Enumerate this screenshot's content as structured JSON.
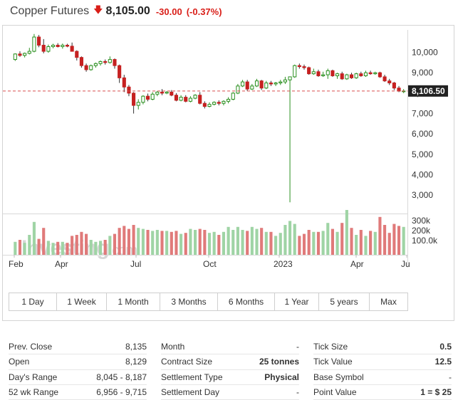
{
  "header": {
    "name": "Copper Futures",
    "price": "8,105.00",
    "change": "-30.00",
    "change_pct": "(-0.37%)"
  },
  "colors": {
    "up": "#2a8f1f",
    "up_fill": "#ffffff",
    "down": "#c62121",
    "vol_up": "#9fd4a5",
    "vol_down": "#e07a7a",
    "last_line": "#d94f4f"
  },
  "chart_data": {
    "type": "candlestick",
    "price_axis": {
      "ticks": [
        "10,000",
        "9,000",
        "8,000",
        "7,000",
        "6,000",
        "5,000",
        "4,000",
        "3,000"
      ],
      "tick_values": [
        10000,
        9000,
        8000,
        7000,
        6000,
        5000,
        4000,
        3000
      ],
      "range": [
        2100,
        11100
      ]
    },
    "last_price_label": "8,106.50",
    "last_price": 8106.5,
    "volume_axis": {
      "ticks": [
        "300k",
        "200k",
        "100.0k"
      ],
      "tick_values": [
        300000,
        200000,
        100000
      ],
      "max": 400000
    },
    "x_labels": [
      "Feb",
      "Apr",
      "Jul",
      "Oct",
      "2023",
      "Apr",
      "Ju"
    ],
    "watermark": "Investing.com",
    "candles": [
      {
        "o": 9650,
        "h": 9950,
        "l": 9580,
        "c": 9920,
        "v": 130000
      },
      {
        "o": 9920,
        "h": 10050,
        "l": 9780,
        "c": 9850,
        "v": 150000
      },
      {
        "o": 9850,
        "h": 9990,
        "l": 9750,
        "c": 9950,
        "v": 120000
      },
      {
        "o": 9950,
        "h": 10220,
        "l": 9900,
        "c": 10050,
        "v": 200000
      },
      {
        "o": 10050,
        "h": 10900,
        "l": 10000,
        "c": 10750,
        "v": 330000
      },
      {
        "o": 10750,
        "h": 10850,
        "l": 10250,
        "c": 10350,
        "v": 160000
      },
      {
        "o": 10350,
        "h": 10650,
        "l": 9950,
        "c": 10050,
        "v": 270000
      },
      {
        "o": 10050,
        "h": 10380,
        "l": 9980,
        "c": 10280,
        "v": 140000
      },
      {
        "o": 10280,
        "h": 10420,
        "l": 10200,
        "c": 10350,
        "v": 120000
      },
      {
        "o": 10350,
        "h": 10450,
        "l": 10240,
        "c": 10280,
        "v": 130000
      },
      {
        "o": 10280,
        "h": 10430,
        "l": 10180,
        "c": 10350,
        "v": 130000
      },
      {
        "o": 10350,
        "h": 10420,
        "l": 10250,
        "c": 10300,
        "v": 120000
      },
      {
        "o": 10300,
        "h": 10480,
        "l": 10100,
        "c": 10050,
        "v": 190000
      },
      {
        "o": 10050,
        "h": 10100,
        "l": 9600,
        "c": 9750,
        "v": 200000
      },
      {
        "o": 9750,
        "h": 9800,
        "l": 9250,
        "c": 9350,
        "v": 230000
      },
      {
        "o": 9350,
        "h": 9450,
        "l": 9050,
        "c": 9150,
        "v": 210000
      },
      {
        "o": 9150,
        "h": 9400,
        "l": 9100,
        "c": 9350,
        "v": 150000
      },
      {
        "o": 9350,
        "h": 9500,
        "l": 9250,
        "c": 9450,
        "v": 130000
      },
      {
        "o": 9450,
        "h": 9600,
        "l": 9350,
        "c": 9550,
        "v": 140000
      },
      {
        "o": 9550,
        "h": 9650,
        "l": 9400,
        "c": 9500,
        "v": 150000
      },
      {
        "o": 9500,
        "h": 9800,
        "l": 9450,
        "c": 9650,
        "v": 190000
      },
      {
        "o": 9650,
        "h": 9700,
        "l": 9200,
        "c": 9350,
        "v": 210000
      },
      {
        "o": 9350,
        "h": 9400,
        "l": 8500,
        "c": 8750,
        "v": 270000
      },
      {
        "o": 8750,
        "h": 8900,
        "l": 8050,
        "c": 8300,
        "v": 290000
      },
      {
        "o": 8300,
        "h": 8400,
        "l": 7850,
        "c": 8000,
        "v": 260000
      },
      {
        "o": 8000,
        "h": 8050,
        "l": 7000,
        "c": 7400,
        "v": 300000
      },
      {
        "o": 7400,
        "h": 7700,
        "l": 7200,
        "c": 7550,
        "v": 270000
      },
      {
        "o": 7550,
        "h": 7900,
        "l": 7450,
        "c": 7850,
        "v": 260000
      },
      {
        "o": 7850,
        "h": 7980,
        "l": 7600,
        "c": 7700,
        "v": 250000
      },
      {
        "o": 7700,
        "h": 8050,
        "l": 7650,
        "c": 7950,
        "v": 240000
      },
      {
        "o": 7950,
        "h": 8100,
        "l": 7850,
        "c": 8050,
        "v": 250000
      },
      {
        "o": 8050,
        "h": 8200,
        "l": 7900,
        "c": 8000,
        "v": 240000
      },
      {
        "o": 8000,
        "h": 8100,
        "l": 7950,
        "c": 8050,
        "v": 240000
      },
      {
        "o": 8050,
        "h": 8150,
        "l": 7850,
        "c": 7900,
        "v": 230000
      },
      {
        "o": 7900,
        "h": 8000,
        "l": 7600,
        "c": 7650,
        "v": 240000
      },
      {
        "o": 7650,
        "h": 7900,
        "l": 7600,
        "c": 7800,
        "v": 210000
      },
      {
        "o": 7800,
        "h": 7900,
        "l": 7550,
        "c": 7600,
        "v": 220000
      },
      {
        "o": 7600,
        "h": 7850,
        "l": 7550,
        "c": 7750,
        "v": 260000
      },
      {
        "o": 7750,
        "h": 7950,
        "l": 7700,
        "c": 7900,
        "v": 250000
      },
      {
        "o": 7900,
        "h": 8050,
        "l": 7450,
        "c": 7500,
        "v": 260000
      },
      {
        "o": 7500,
        "h": 7600,
        "l": 7250,
        "c": 7350,
        "v": 250000
      },
      {
        "o": 7350,
        "h": 7550,
        "l": 7300,
        "c": 7450,
        "v": 220000
      },
      {
        "o": 7450,
        "h": 7600,
        "l": 7400,
        "c": 7550,
        "v": 230000
      },
      {
        "o": 7550,
        "h": 7650,
        "l": 7400,
        "c": 7500,
        "v": 200000
      },
      {
        "o": 7500,
        "h": 7650,
        "l": 7400,
        "c": 7600,
        "v": 230000
      },
      {
        "o": 7600,
        "h": 7800,
        "l": 7500,
        "c": 7700,
        "v": 280000
      },
      {
        "o": 7700,
        "h": 8050,
        "l": 7650,
        "c": 8000,
        "v": 250000
      },
      {
        "o": 8000,
        "h": 8450,
        "l": 7950,
        "c": 8350,
        "v": 280000
      },
      {
        "o": 8350,
        "h": 8650,
        "l": 8300,
        "c": 8550,
        "v": 250000
      },
      {
        "o": 8550,
        "h": 8650,
        "l": 8100,
        "c": 8200,
        "v": 240000
      },
      {
        "o": 8200,
        "h": 8450,
        "l": 8150,
        "c": 8350,
        "v": 280000
      },
      {
        "o": 8350,
        "h": 8700,
        "l": 8300,
        "c": 8600,
        "v": 260000
      },
      {
        "o": 8600,
        "h": 8650,
        "l": 8150,
        "c": 8250,
        "v": 270000
      },
      {
        "o": 8250,
        "h": 8600,
        "l": 8200,
        "c": 8500,
        "v": 230000
      },
      {
        "o": 8500,
        "h": 8600,
        "l": 8350,
        "c": 8450,
        "v": 230000
      },
      {
        "o": 8450,
        "h": 8550,
        "l": 8350,
        "c": 8500,
        "v": 190000
      },
      {
        "o": 8500,
        "h": 8650,
        "l": 8400,
        "c": 8550,
        "v": 220000
      },
      {
        "o": 8550,
        "h": 8800,
        "l": 8450,
        "c": 8650,
        "v": 300000
      },
      {
        "o": 8650,
        "h": 8800,
        "l": 2650,
        "c": 8800,
        "v": 340000
      },
      {
        "o": 8800,
        "h": 9400,
        "l": 8750,
        "c": 9350,
        "v": 310000
      },
      {
        "o": 9350,
        "h": 9450,
        "l": 9200,
        "c": 9300,
        "v": 190000
      },
      {
        "o": 9300,
        "h": 9400,
        "l": 9150,
        "c": 9250,
        "v": 210000
      },
      {
        "o": 9250,
        "h": 9300,
        "l": 8900,
        "c": 8950,
        "v": 250000
      },
      {
        "o": 8950,
        "h": 9200,
        "l": 8900,
        "c": 9050,
        "v": 230000
      },
      {
        "o": 9050,
        "h": 9150,
        "l": 8800,
        "c": 8850,
        "v": 230000
      },
      {
        "o": 8850,
        "h": 9050,
        "l": 8800,
        "c": 8900,
        "v": 240000
      },
      {
        "o": 8900,
        "h": 9200,
        "l": 8700,
        "c": 9100,
        "v": 320000
      },
      {
        "o": 9100,
        "h": 9150,
        "l": 8800,
        "c": 8850,
        "v": 260000
      },
      {
        "o": 8850,
        "h": 9000,
        "l": 8700,
        "c": 8950,
        "v": 230000
      },
      {
        "o": 8950,
        "h": 9050,
        "l": 8650,
        "c": 8700,
        "v": 320000
      },
      {
        "o": 8700,
        "h": 8950,
        "l": 8650,
        "c": 8900,
        "v": 450000
      },
      {
        "o": 8900,
        "h": 9000,
        "l": 8700,
        "c": 8750,
        "v": 270000
      },
      {
        "o": 8750,
        "h": 9000,
        "l": 8700,
        "c": 8950,
        "v": 200000
      },
      {
        "o": 8950,
        "h": 9050,
        "l": 8800,
        "c": 8850,
        "v": 250000
      },
      {
        "o": 8850,
        "h": 9100,
        "l": 8800,
        "c": 9000,
        "v": 190000
      },
      {
        "o": 9000,
        "h": 9100,
        "l": 8900,
        "c": 8950,
        "v": 240000
      },
      {
        "o": 8950,
        "h": 9050,
        "l": 8900,
        "c": 9000,
        "v": 230000
      },
      {
        "o": 9000,
        "h": 9050,
        "l": 8750,
        "c": 8800,
        "v": 380000
      },
      {
        "o": 8800,
        "h": 8900,
        "l": 8550,
        "c": 8600,
        "v": 300000
      },
      {
        "o": 8600,
        "h": 8700,
        "l": 8400,
        "c": 8500,
        "v": 220000
      },
      {
        "o": 8500,
        "h": 8550,
        "l": 8150,
        "c": 8250,
        "v": 310000
      },
      {
        "o": 8250,
        "h": 8350,
        "l": 8050,
        "c": 8100,
        "v": 290000
      },
      {
        "o": 8100,
        "h": 8200,
        "l": 8000,
        "c": 8105,
        "v": 280000
      }
    ]
  },
  "timeframes": [
    "1 Day",
    "1 Week",
    "1 Month",
    "3 Months",
    "6 Months",
    "1 Year",
    "5 years",
    "Max"
  ],
  "stats": {
    "col1": [
      {
        "label": "Prev. Close",
        "value": "8,135"
      },
      {
        "label": "Open",
        "value": "8,129"
      },
      {
        "label": "Day's Range",
        "value": "8,045 - 8,187"
      },
      {
        "label": "52 wk Range",
        "value": "6,956 - 9,715"
      }
    ],
    "col2": [
      {
        "label": "Month",
        "value": "-"
      },
      {
        "label": "Contract Size",
        "value": "25 tonnes"
      },
      {
        "label": "Settlement Type",
        "value": "Physical"
      },
      {
        "label": "Settlement Day",
        "value": "-"
      }
    ],
    "col3": [
      {
        "label": "Tick Size",
        "value": "0.5"
      },
      {
        "label": "Tick Value",
        "value": "12.5"
      },
      {
        "label": "Base Symbol",
        "value": "-"
      },
      {
        "label": "Point Value",
        "value": "1 = $ 25"
      }
    ]
  }
}
